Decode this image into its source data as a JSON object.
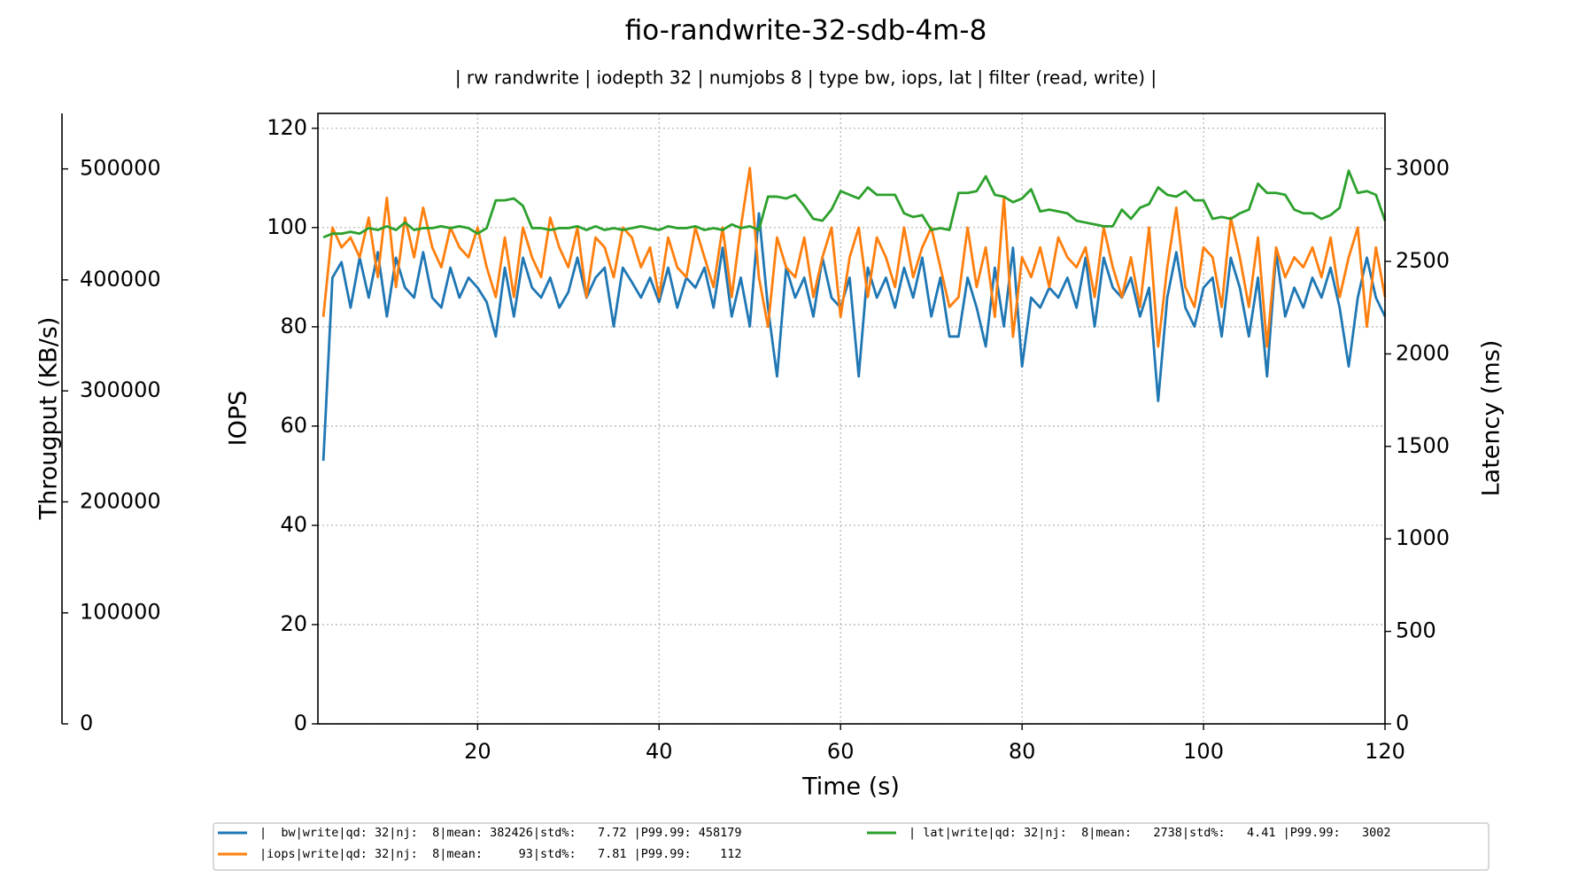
{
  "chart_data": {
    "type": "line",
    "title": "fio-randwrite-32-sdb-4m-8",
    "subtitle": "| rw randwrite | iodepth 32 | numjobs 8 | type bw, iops, lat | filter (read, write) |",
    "xlabel": "Time (s)",
    "ylabel": "IOPS",
    "y2label": "Latency (ms)",
    "y3label": "Througput (KB/s)",
    "xlim": [
      2.4,
      120
    ],
    "xticks": [
      20,
      40,
      60,
      80,
      100,
      120
    ],
    "ylim": [
      0,
      123
    ],
    "yticks": [
      0,
      20,
      40,
      60,
      80,
      100,
      120
    ],
    "y2lim": [
      0,
      3300
    ],
    "y2ticks": [
      0,
      500,
      1000,
      1500,
      2000,
      2500,
      3000
    ],
    "y3lim": [
      0,
      550000
    ],
    "y3ticks": [
      0,
      100000,
      200000,
      300000,
      400000,
      500000
    ],
    "grid": true,
    "x": [
      3,
      4,
      5,
      6,
      7,
      8,
      9,
      10,
      11,
      12,
      13,
      14,
      15,
      16,
      17,
      18,
      19,
      20,
      21,
      22,
      23,
      24,
      25,
      26,
      27,
      28,
      29,
      30,
      31,
      32,
      33,
      34,
      35,
      36,
      37,
      38,
      39,
      40,
      41,
      42,
      43,
      44,
      45,
      46,
      47,
      48,
      49,
      50,
      51,
      52,
      53,
      54,
      55,
      56,
      57,
      58,
      59,
      60,
      61,
      62,
      63,
      64,
      65,
      66,
      67,
      68,
      69,
      70,
      71,
      72,
      73,
      74,
      75,
      76,
      77,
      78,
      79,
      80,
      81,
      82,
      83,
      84,
      85,
      86,
      87,
      88,
      89,
      90,
      91,
      92,
      93,
      94,
      95,
      96,
      97,
      98,
      99,
      100,
      101,
      102,
      103,
      104,
      105,
      106,
      107,
      108,
      109,
      110,
      111,
      112,
      113,
      114,
      115,
      116,
      117,
      118,
      119,
      120
    ],
    "series": [
      {
        "name": "|  bw|write|qd: 32|nj:  8|mean: 382426|std%:   7.72 |P99.99: 458179",
        "color": "#1f77b4",
        "axis": "y3",
        "values": [
          237000,
          402000,
          416000,
          375000,
          420000,
          384000,
          425000,
          367000,
          420000,
          393000,
          384000,
          425000,
          384000,
          375000,
          411000,
          384000,
          402000,
          393000,
          380000,
          349000,
          411000,
          367000,
          420000,
          393000,
          384000,
          402000,
          375000,
          389000,
          420000,
          384000,
          402000,
          411000,
          358000,
          411000,
          398000,
          384000,
          402000,
          380000,
          411000,
          375000,
          402000,
          393000,
          411000,
          375000,
          429000,
          367000,
          402000,
          358000,
          460000,
          375000,
          313000,
          411000,
          384000,
          402000,
          367000,
          420000,
          384000,
          375000,
          402000,
          313000,
          411000,
          384000,
          402000,
          375000,
          411000,
          384000,
          420000,
          367000,
          402000,
          349000,
          349000,
          402000,
          375000,
          340000,
          411000,
          358000,
          429000,
          322000,
          384000,
          375000,
          393000,
          384000,
          402000,
          375000,
          420000,
          358000,
          420000,
          393000,
          384000,
          402000,
          367000,
          393000,
          291000,
          384000,
          425000,
          375000,
          358000,
          393000,
          402000,
          349000,
          420000,
          393000,
          349000,
          402000,
          313000,
          425000,
          367000,
          393000,
          375000,
          402000,
          384000,
          411000,
          375000,
          322000,
          384000,
          420000,
          384000,
          367000
        ]
      },
      {
        "name": "|iops|write|qd: 32|nj:  8|mean:     93|std%:   7.81 |P99.99:    112",
        "color": "#ff7f0e",
        "axis": "y",
        "values": [
          82,
          100,
          96,
          98,
          94,
          102,
          90,
          106,
          88,
          102,
          94,
          104,
          96,
          92,
          100,
          96,
          94,
          100,
          92,
          86,
          98,
          86,
          100,
          94,
          90,
          102,
          96,
          92,
          100,
          86,
          98,
          96,
          90,
          100,
          98,
          92,
          96,
          86,
          98,
          92,
          90,
          100,
          94,
          88,
          100,
          86,
          100,
          112,
          90,
          80,
          98,
          92,
          90,
          98,
          86,
          94,
          100,
          82,
          94,
          100,
          86,
          98,
          94,
          88,
          100,
          90,
          96,
          100,
          92,
          84,
          86,
          100,
          88,
          96,
          82,
          106,
          78,
          94,
          90,
          96,
          88,
          98,
          94,
          92,
          96,
          86,
          100,
          92,
          86,
          94,
          84,
          100,
          76,
          92,
          104,
          88,
          84,
          96,
          94,
          84,
          102,
          94,
          84,
          98,
          76,
          96,
          90,
          94,
          92,
          96,
          90,
          98,
          86,
          94,
          100,
          80,
          96,
          86
        ]
      },
      {
        "name": "| lat|write|qd: 32|nj:  8|mean:   2738|std%:   4.41 |P99.99:   3002",
        "color": "#2ca02c",
        "axis": "y2",
        "values": [
          2630,
          2650,
          2650,
          2660,
          2650,
          2680,
          2670,
          2690,
          2670,
          2710,
          2670,
          2680,
          2680,
          2690,
          2680,
          2690,
          2680,
          2650,
          2680,
          2830,
          2830,
          2840,
          2800,
          2680,
          2680,
          2670,
          2680,
          2680,
          2690,
          2670,
          2690,
          2670,
          2680,
          2670,
          2680,
          2690,
          2680,
          2670,
          2690,
          2680,
          2680,
          2690,
          2670,
          2680,
          2670,
          2700,
          2680,
          2690,
          2670,
          2850,
          2850,
          2840,
          2860,
          2800,
          2730,
          2720,
          2780,
          2880,
          2860,
          2840,
          2900,
          2860,
          2860,
          2860,
          2760,
          2740,
          2750,
          2670,
          2680,
          2670,
          2870,
          2870,
          2880,
          2960,
          2860,
          2850,
          2820,
          2840,
          2890,
          2770,
          2780,
          2770,
          2760,
          2720,
          2710,
          2700,
          2690,
          2690,
          2780,
          2730,
          2790,
          2810,
          2900,
          2860,
          2850,
          2880,
          2830,
          2830,
          2730,
          2740,
          2730,
          2760,
          2780,
          2920,
          2870,
          2870,
          2860,
          2780,
          2760,
          2760,
          2730,
          2750,
          2790,
          2990,
          2870,
          2880,
          2860,
          2720
        ]
      }
    ]
  }
}
